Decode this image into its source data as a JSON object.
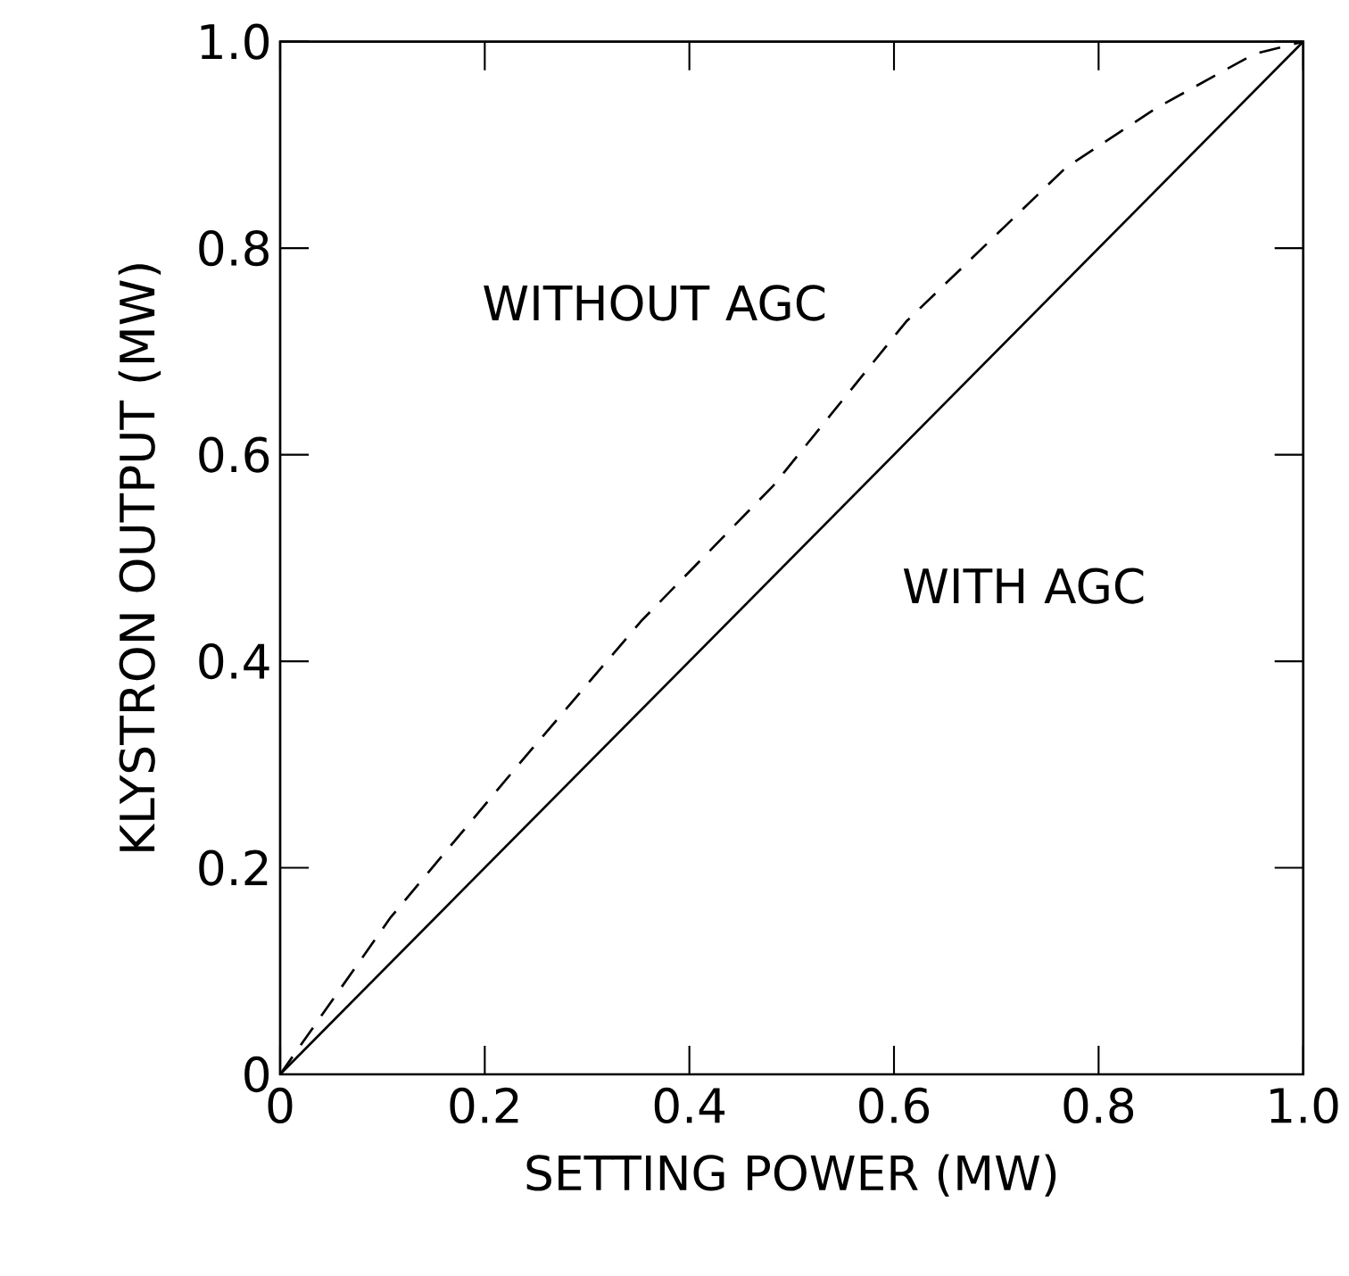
{
  "chart_data": {
    "type": "line",
    "xlabel": "SETTING POWER (MW)",
    "ylabel": "KLYSTRON OUTPUT (MW)",
    "xlim": [
      0,
      1
    ],
    "ylim": [
      0,
      1
    ],
    "xticks": [
      0,
      0.2,
      0.4,
      0.6,
      0.8,
      {
        "value": 1,
        "label": "1.0"
      }
    ],
    "yticks": [
      0,
      0.2,
      0.4,
      0.6,
      0.8,
      {
        "value": 1,
        "label": "1.0"
      }
    ],
    "grid": false,
    "legend": false,
    "marker": "none",
    "series": [
      {
        "name": "WITHOUT AGC",
        "color": "#000000",
        "line_style": "dashed",
        "x": [
          0,
          0.108,
          0.234,
          0.353,
          0.482,
          0.612,
          0.768,
          0.857,
          0.952,
          1
        ],
        "values": [
          0,
          0.152,
          0.301,
          0.439,
          0.57,
          0.729,
          0.878,
          0.936,
          0.988,
          1
        ]
      },
      {
        "name": "WITH AGC",
        "color": "#000000",
        "line_style": "solid",
        "x": [
          0,
          0.5,
          1
        ],
        "values": [
          0,
          0.5,
          1
        ]
      }
    ]
  }
}
